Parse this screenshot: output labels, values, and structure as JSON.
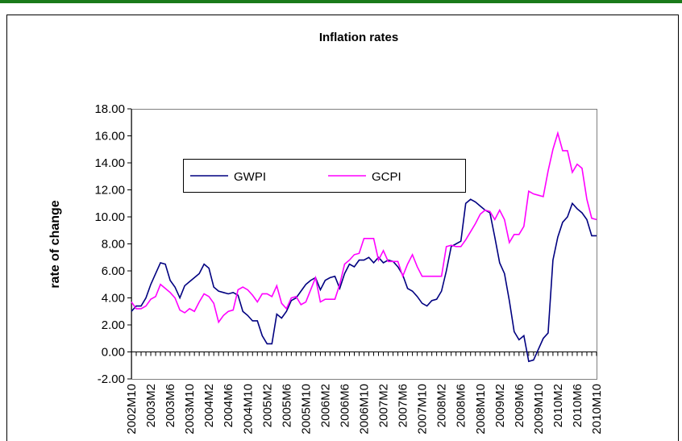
{
  "chart_data": {
    "type": "line",
    "title": "Inflation rates",
    "y_label": "rate of change",
    "categories": [
      "2002M10",
      null,
      null,
      null,
      "2003M2",
      null,
      null,
      null,
      "2003M6",
      null,
      null,
      null,
      "2003M10",
      null,
      null,
      null,
      "2004M2",
      null,
      null,
      null,
      "2004M6",
      null,
      null,
      null,
      "2004M10",
      null,
      null,
      null,
      "2005M2",
      null,
      null,
      null,
      "2005M6",
      null,
      null,
      null,
      "2005M10",
      null,
      null,
      null,
      "2006M2",
      null,
      null,
      null,
      "2006M6",
      null,
      null,
      null,
      "2006M10",
      null,
      null,
      null,
      "2007M2",
      null,
      null,
      null,
      "2007M6",
      null,
      null,
      null,
      "2007M10",
      null,
      null,
      null,
      "2008M2",
      null,
      null,
      null,
      "2008M6",
      null,
      null,
      null,
      "2008M10",
      null,
      null,
      null,
      "2009M2",
      null,
      null,
      null,
      "2009M6",
      null,
      null,
      null,
      "2009M10",
      null,
      null,
      null,
      "2010M2",
      null,
      null,
      null,
      "2010M6",
      null,
      null,
      null,
      "2010M10"
    ],
    "series": [
      {
        "name": "GWPI",
        "color": "#000080",
        "values": [
          3.0,
          3.4,
          3.4,
          4.0,
          5.0,
          5.8,
          6.6,
          6.5,
          5.3,
          4.8,
          4.0,
          4.9,
          5.2,
          5.5,
          5.8,
          6.5,
          6.2,
          4.8,
          4.5,
          4.4,
          4.3,
          4.4,
          4.2,
          3.0,
          2.7,
          2.3,
          2.3,
          1.2,
          0.6,
          0.6,
          2.8,
          2.5,
          3.0,
          3.8,
          4.0,
          4.5,
          5.0,
          5.3,
          5.5,
          4.6,
          5.3,
          5.5,
          5.6,
          4.7,
          5.8,
          6.5,
          6.3,
          6.8,
          6.8,
          7.0,
          6.6,
          7.0,
          6.6,
          6.8,
          6.7,
          6.3,
          5.7,
          4.7,
          4.5,
          4.1,
          3.6,
          3.4,
          3.8,
          3.9,
          4.5,
          6.0,
          7.8,
          8.0,
          8.2,
          11.0,
          11.3,
          11.1,
          10.8,
          10.5,
          10.3,
          8.5,
          6.6,
          5.8,
          3.8,
          1.5,
          0.9,
          1.2,
          -0.7,
          -0.6,
          0.2,
          1.0,
          1.4,
          6.8,
          8.5,
          9.6,
          10.0,
          11.0,
          10.6,
          10.3,
          9.8,
          8.6,
          8.6
        ]
      },
      {
        "name": "GCPI",
        "color": "#ff00ff",
        "values": [
          3.7,
          3.2,
          3.2,
          3.4,
          3.9,
          4.1,
          5.0,
          4.7,
          4.4,
          4.0,
          3.1,
          2.9,
          3.2,
          3.0,
          3.7,
          4.3,
          4.1,
          3.6,
          2.2,
          2.7,
          3.0,
          3.1,
          4.6,
          4.8,
          4.6,
          4.2,
          3.7,
          4.3,
          4.3,
          4.1,
          4.9,
          3.6,
          3.2,
          4.0,
          4.1,
          3.5,
          3.7,
          4.6,
          5.5,
          3.7,
          3.9,
          3.9,
          3.9,
          5.0,
          6.5,
          6.8,
          7.2,
          7.3,
          8.4,
          8.4,
          8.4,
          6.8,
          7.5,
          6.7,
          6.7,
          6.7,
          5.6,
          6.5,
          7.2,
          6.3,
          5.6,
          5.6,
          5.6,
          5.6,
          5.6,
          7.8,
          7.9,
          7.8,
          7.8,
          8.3,
          8.9,
          9.5,
          10.2,
          10.5,
          10.4,
          9.8,
          10.5,
          9.8,
          8.1,
          8.7,
          8.7,
          9.3,
          11.9,
          11.7,
          11.6,
          11.5,
          13.4,
          15.0,
          16.2,
          14.9,
          14.9,
          13.3,
          13.9,
          13.6,
          11.3,
          9.9,
          9.8
        ]
      }
    ],
    "ylim": [
      -2,
      18
    ],
    "yticks": [
      {
        "value": -2,
        "label": "-2.00"
      },
      {
        "value": 0,
        "label": "0.00"
      },
      {
        "value": 2,
        "label": "2.00"
      },
      {
        "value": 4,
        "label": "4.00"
      },
      {
        "value": 6,
        "label": "6.00"
      },
      {
        "value": 8,
        "label": "8.00"
      },
      {
        "value": 10,
        "label": "10.00"
      },
      {
        "value": 12,
        "label": "12.00"
      },
      {
        "value": 14,
        "label": "14.00"
      },
      {
        "value": 16,
        "label": "16.00"
      },
      {
        "value": 18,
        "label": "18.00"
      }
    ],
    "grid": false
  }
}
